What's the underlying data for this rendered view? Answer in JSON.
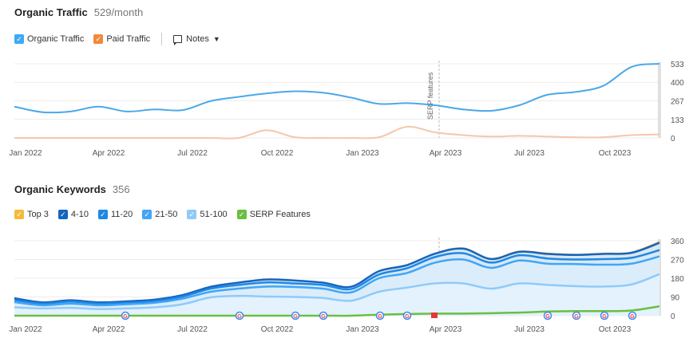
{
  "traffic": {
    "title": "Organic Traffic",
    "value": "529/month",
    "legend": [
      {
        "label": "Organic Traffic",
        "color": "#3fa9f5"
      },
      {
        "label": "Paid Traffic",
        "color": "#f0893a"
      }
    ],
    "notes_label": "Notes"
  },
  "keywords": {
    "title": "Organic Keywords",
    "value": "356",
    "legend": [
      {
        "label": "Top 3",
        "color": "#f6b93b"
      },
      {
        "label": "4-10",
        "color": "#1565c0"
      },
      {
        "label": "11-20",
        "color": "#1e88e5"
      },
      {
        "label": "21-50",
        "color": "#42a5f5"
      },
      {
        "label": "51-100",
        "color": "#90caf9"
      },
      {
        "label": "SERP Features",
        "color": "#6abf40"
      }
    ]
  },
  "x_ticks": [
    "Jan 2022",
    "Apr 2022",
    "Jul 2022",
    "Oct 2022",
    "Jan 2023",
    "Apr 2023",
    "Jul 2023",
    "Oct 2023"
  ],
  "serp_annotation": "SERP features",
  "chart_data": [
    {
      "type": "line",
      "title": "Organic Traffic",
      "x": [
        "Jan 2022",
        "Feb 2022",
        "Mar 2022",
        "Apr 2022",
        "May 2022",
        "Jun 2022",
        "Jul 2022",
        "Aug 2022",
        "Sep 2022",
        "Oct 2022",
        "Nov 2022",
        "Dec 2022",
        "Jan 2023",
        "Feb 2023",
        "Mar 2023",
        "Apr 2023",
        "May 2023",
        "Jun 2023",
        "Jul 2023",
        "Aug 2023",
        "Sep 2023",
        "Oct 2023",
        "Nov 2023",
        "Dec 2023"
      ],
      "y_ticks": [
        0,
        133,
        267,
        400,
        533
      ],
      "ylim": [
        0,
        533
      ],
      "series": [
        {
          "name": "Organic Traffic",
          "color": "#4aa8e8",
          "values": [
            225,
            185,
            190,
            225,
            190,
            205,
            200,
            265,
            295,
            320,
            335,
            325,
            290,
            245,
            250,
            235,
            205,
            195,
            235,
            310,
            330,
            375,
            510,
            533
          ]
        },
        {
          "name": "Paid Traffic",
          "color": "#f5c7a9",
          "values": [
            0,
            0,
            0,
            0,
            0,
            0,
            0,
            0,
            0,
            55,
            5,
            0,
            0,
            5,
            80,
            40,
            20,
            10,
            15,
            10,
            5,
            5,
            20,
            25
          ]
        }
      ],
      "grid": true
    },
    {
      "type": "area",
      "title": "Organic Keywords",
      "x": [
        "Jan 2022",
        "Feb 2022",
        "Mar 2022",
        "Apr 2022",
        "May 2022",
        "Jun 2022",
        "Jul 2022",
        "Aug 2022",
        "Sep 2022",
        "Oct 2022",
        "Nov 2022",
        "Dec 2022",
        "Jan 2023",
        "Feb 2023",
        "Mar 2023",
        "Apr 2023",
        "May 2023",
        "Jun 2023",
        "Jul 2023",
        "Aug 2023",
        "Sep 2023",
        "Oct 2023",
        "Nov 2023",
        "Dec 2023"
      ],
      "y_ticks": [
        0,
        90,
        180,
        270,
        360
      ],
      "ylim": [
        0,
        360
      ],
      "series": [
        {
          "name": "Top 3",
          "color": "#f6b93b",
          "values": [
            85,
            65,
            75,
            65,
            70,
            78,
            100,
            140,
            160,
            175,
            170,
            160,
            140,
            215,
            245,
            300,
            325,
            275,
            310,
            300,
            295,
            300,
            305,
            356
          ]
        },
        {
          "name": "4-10",
          "color": "#1565c0",
          "values": [
            84,
            64,
            74,
            64,
            69,
            77,
            99,
            139,
            159,
            174,
            169,
            159,
            139,
            214,
            243,
            298,
            322,
            272,
            307,
            297,
            292,
            297,
            302,
            350
          ]
        },
        {
          "name": "11-20",
          "color": "#1e88e5",
          "values": [
            75,
            58,
            68,
            58,
            62,
            70,
            92,
            130,
            148,
            160,
            155,
            148,
            128,
            198,
            228,
            282,
            300,
            255,
            290,
            275,
            270,
            272,
            278,
            315
          ]
        },
        {
          "name": "21-50",
          "color": "#42a5f5",
          "values": [
            65,
            50,
            58,
            50,
            55,
            62,
            82,
            115,
            130,
            140,
            138,
            130,
            112,
            180,
            205,
            255,
            270,
            230,
            265,
            250,
            248,
            245,
            250,
            285
          ]
        },
        {
          "name": "51-100",
          "color": "#90caf9",
          "values": [
            40,
            35,
            38,
            32,
            35,
            40,
            55,
            88,
            95,
            92,
            90,
            85,
            72,
            115,
            135,
            155,
            155,
            130,
            155,
            148,
            142,
            140,
            150,
            200
          ]
        },
        {
          "name": "SERP Features",
          "color": "#6abf40",
          "values": [
            0,
            0,
            0,
            0,
            0,
            0,
            0,
            0,
            0,
            0,
            0,
            0,
            0,
            5,
            8,
            10,
            10,
            12,
            15,
            20,
            22,
            22,
            25,
            45
          ]
        }
      ],
      "grid": true
    }
  ]
}
